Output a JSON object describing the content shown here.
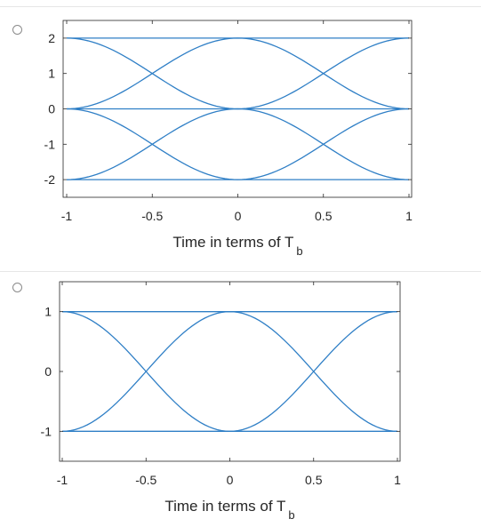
{
  "options": [
    {
      "chart_data": {
        "type": "line",
        "subtype": "eye-diagram",
        "xlabel": "Time in terms of T",
        "xlabel_subscript": "b",
        "xlim": [
          -1,
          1
        ],
        "ylim": [
          -2.5,
          2.5
        ],
        "xticks": [
          -1,
          -0.5,
          0,
          0.5,
          1
        ],
        "xtick_labels": [
          "-1",
          "-0.5",
          "0",
          "0.5",
          "1"
        ],
        "yticks": [
          2,
          1,
          0,
          -1,
          -2
        ],
        "ytick_labels": [
          "2",
          "1",
          "0",
          "-1",
          "-2"
        ],
        "grid": false,
        "line_color": "#2f7fc6",
        "traces": [
          {
            "x": [
              -1,
              1
            ],
            "y_start": 2,
            "y_mid": 2,
            "y_end": 2
          },
          {
            "x": [
              -1,
              1
            ],
            "y_start": -2,
            "y_mid": -2,
            "y_end": -2
          },
          {
            "x": [
              -1,
              1
            ],
            "y_start": 0,
            "y_mid": 0,
            "y_end": 0
          },
          {
            "x": [
              -1,
              1
            ],
            "y_start": 2,
            "y_mid": 0,
            "y_end": 2
          },
          {
            "x": [
              -1,
              1
            ],
            "y_start": -2,
            "y_mid": 0,
            "y_end": -2
          },
          {
            "x": [
              -1,
              1
            ],
            "y_start": 0,
            "y_mid": 2,
            "y_end": 0
          },
          {
            "x": [
              -1,
              1
            ],
            "y_start": 0,
            "y_mid": -2,
            "y_end": 0
          }
        ]
      }
    },
    {
      "chart_data": {
        "type": "line",
        "subtype": "eye-diagram",
        "xlabel": "Time in terms of T",
        "xlabel_subscript": "b",
        "xlim": [
          -1,
          1
        ],
        "ylim": [
          -1.5,
          1.5
        ],
        "xticks": [
          -1,
          -0.5,
          0,
          0.5,
          1
        ],
        "xtick_labels": [
          "-1",
          "-0.5",
          "0",
          "0.5",
          "1"
        ],
        "yticks": [
          1,
          0,
          -1
        ],
        "ytick_labels": [
          "1",
          "0",
          "-1"
        ],
        "grid": false,
        "line_color": "#2f7fc6",
        "traces": [
          {
            "x": [
              -1,
              1
            ],
            "y_start": 1,
            "y_mid": 1,
            "y_end": 1
          },
          {
            "x": [
              -1,
              1
            ],
            "y_start": -1,
            "y_mid": -1,
            "y_end": -1
          },
          {
            "x": [
              -1,
              1
            ],
            "y_start": 1,
            "y_mid": -1,
            "y_end": 1
          },
          {
            "x": [
              -1,
              1
            ],
            "y_start": -1,
            "y_mid": 1,
            "y_end": -1
          }
        ]
      }
    }
  ]
}
